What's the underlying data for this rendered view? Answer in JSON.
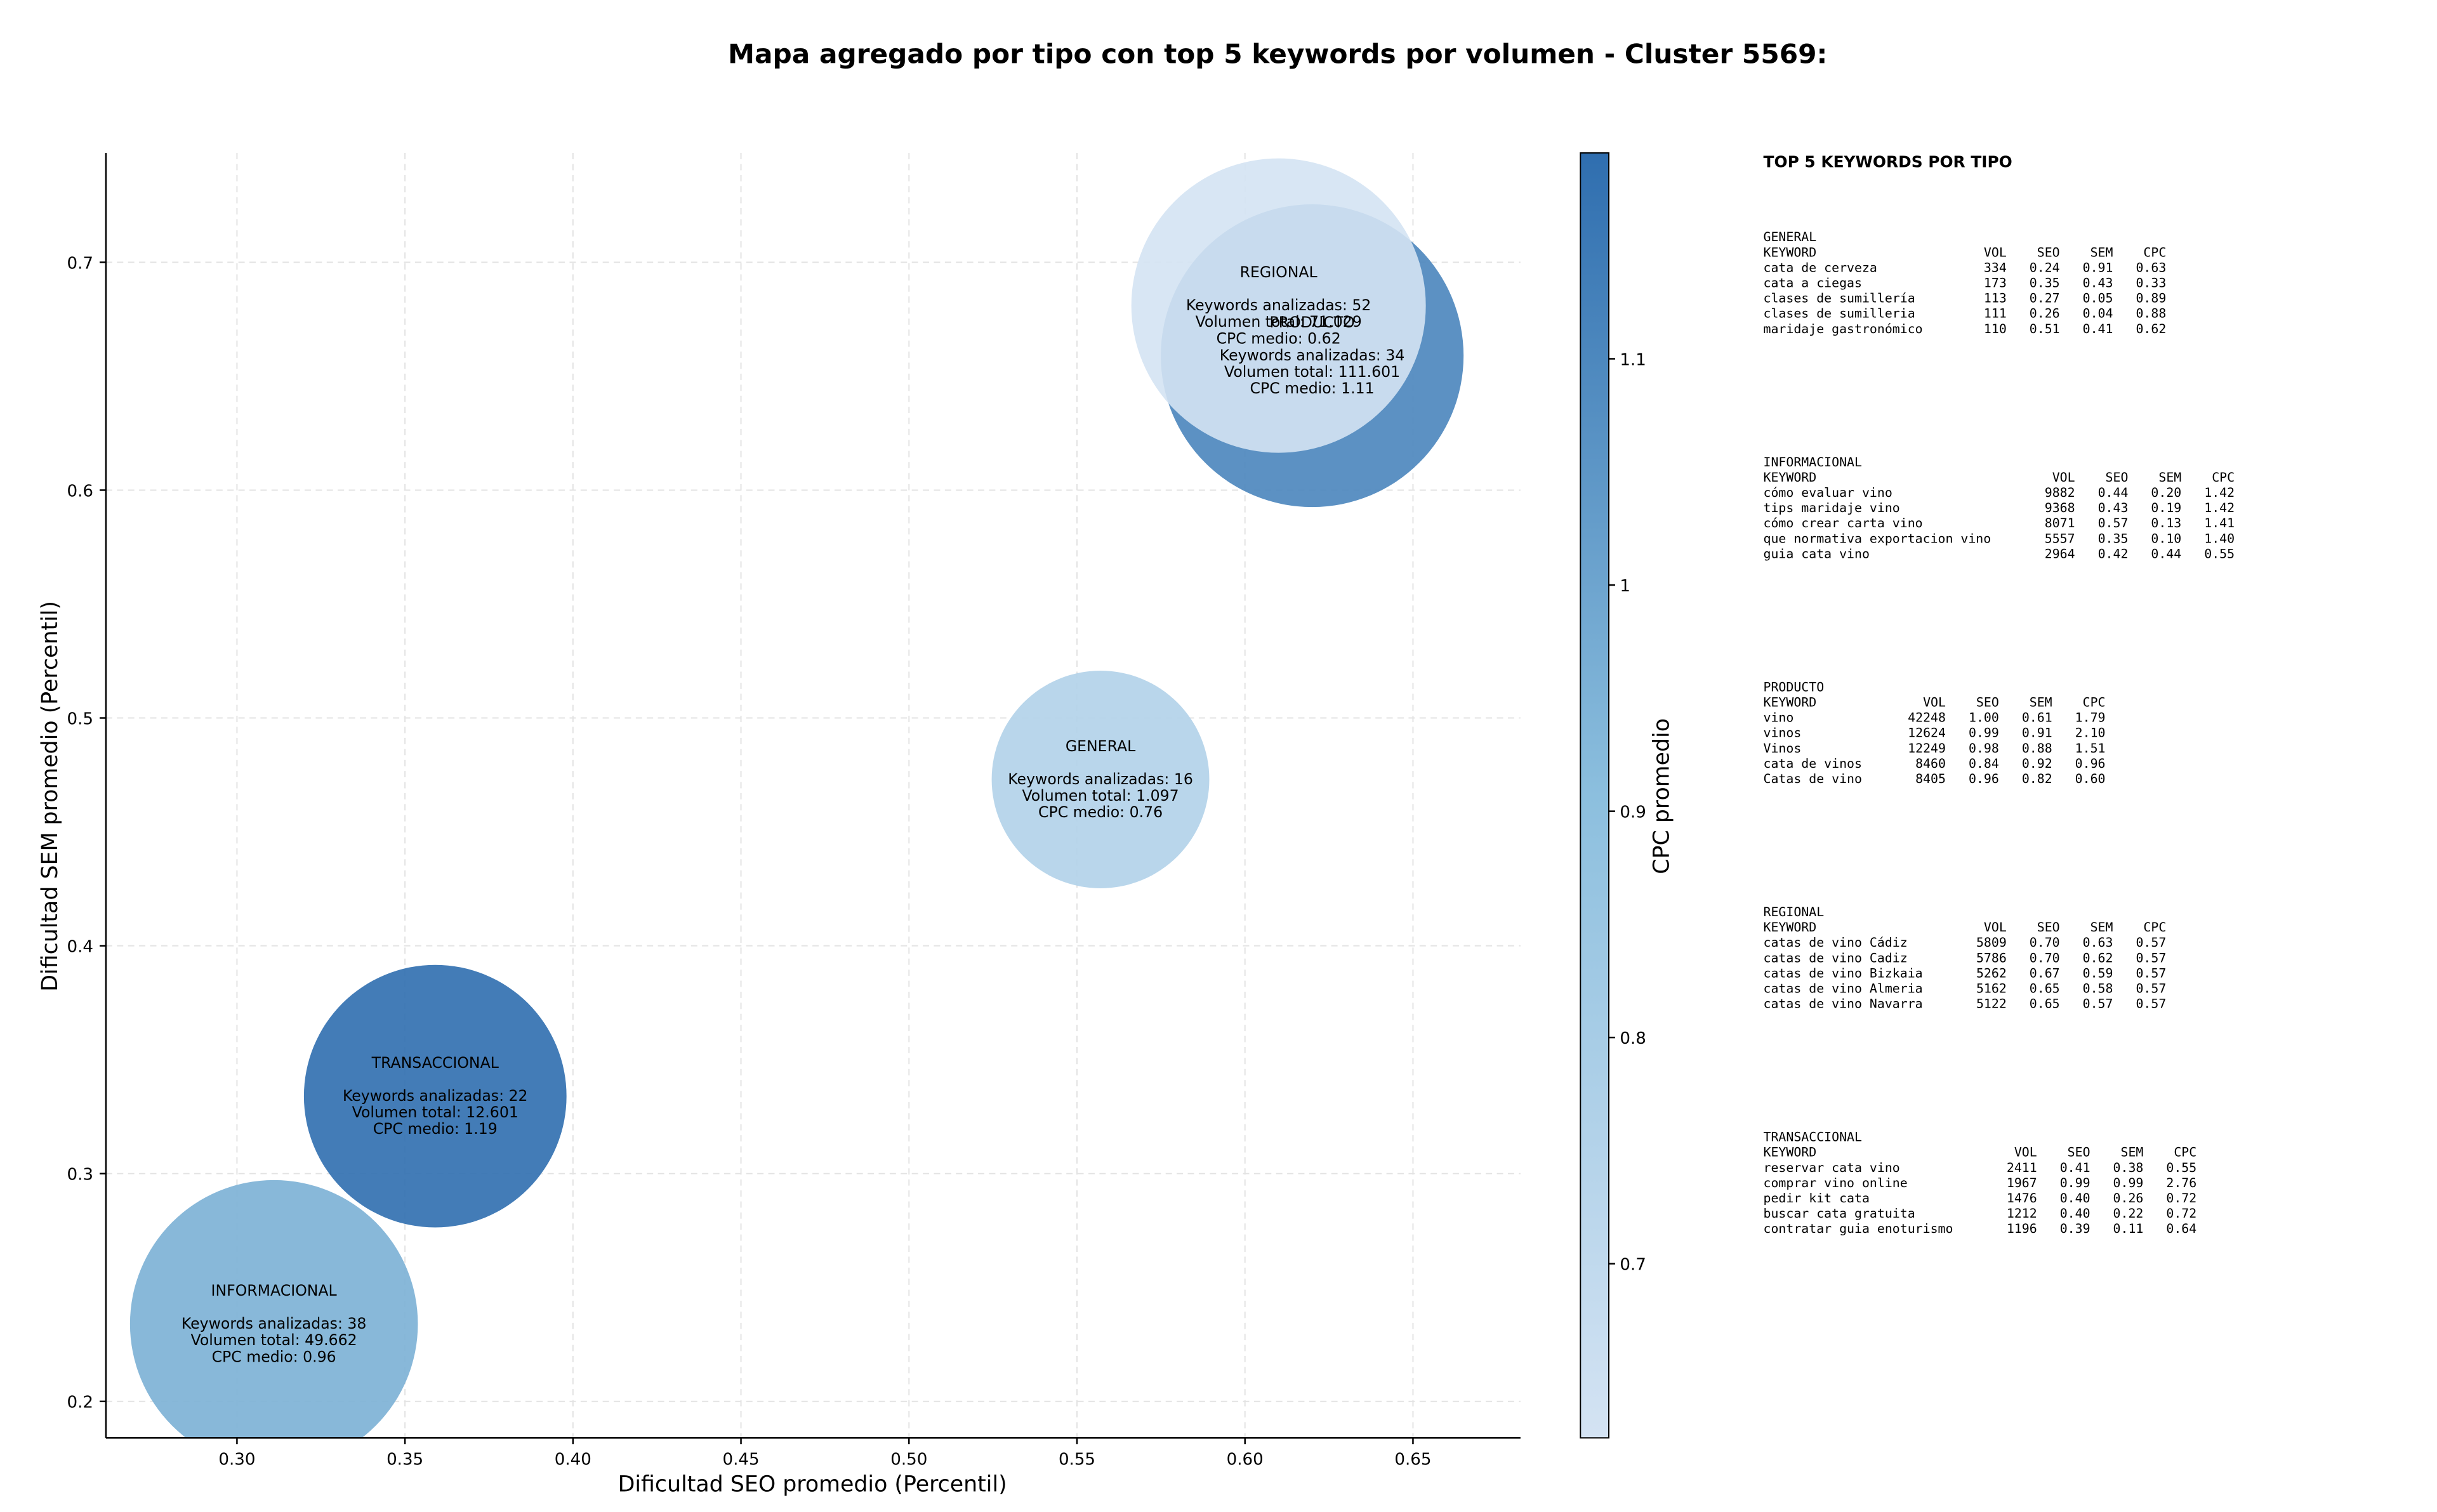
{
  "chart_data": {
    "type": "bubble",
    "title": "Mapa agregado por tipo con top 5 keywords por volumen - Cluster 5569:",
    "x_label": "Dificultad SEO promedio (Percentil)",
    "y_label": "Dificultad SEM promedio (Percentil)",
    "xlim": [
      0.261,
      0.682
    ],
    "ylim": [
      0.184,
      0.748
    ],
    "xticks": [
      {
        "value": 0.3,
        "label": "0.30"
      },
      {
        "value": 0.35,
        "label": "0.35"
      },
      {
        "value": 0.4,
        "label": "0.40"
      },
      {
        "value": 0.45,
        "label": "0.45"
      },
      {
        "value": 0.5,
        "label": "0.50"
      },
      {
        "value": 0.55,
        "label": "0.55"
      },
      {
        "value": 0.6,
        "label": "0.60"
      },
      {
        "value": 0.65,
        "label": "0.65"
      }
    ],
    "yticks": [
      0.2,
      0.3,
      0.4,
      0.5,
      0.6,
      0.7
    ],
    "grid": true,
    "colorbar": {
      "label": "CPC promedio",
      "lim": [
        0.623,
        1.191
      ],
      "ticks": [
        0.7,
        0.8,
        0.9,
        1.0,
        1.1
      ],
      "colors": [
        "#d4e3f3",
        "#8cbfde",
        "#2f6eaf"
      ]
    },
    "points": [
      {
        "name": "INFORMACIONAL",
        "x": 0.311,
        "y": 0.234,
        "volume": 49662,
        "cpc": 0.96,
        "lines": [
          "Keywords analizadas: 38",
          "Volumen total: 49.662",
          "CPC medio: 0.96"
        ]
      },
      {
        "name": "TRANSACCIONAL",
        "x": 0.359,
        "y": 0.334,
        "volume": 12601,
        "cpc": 1.19,
        "lines": [
          "Keywords analizadas: 22",
          "Volumen total: 12.601",
          "CPC medio: 1.19"
        ]
      },
      {
        "name": "GENERAL",
        "x": 0.557,
        "y": 0.473,
        "volume": 1097,
        "cpc": 0.76,
        "lines": [
          "Keywords analizadas: 16",
          "Volumen total: 1.097",
          "CPC medio: 0.76"
        ]
      },
      {
        "name": "PRODUCTO",
        "x": 0.62,
        "y": 0.659,
        "volume": 111601,
        "cpc": 1.11,
        "lines": [
          "Keywords analizadas: 34",
          "Volumen total: 111.601",
          "CPC medio: 1.11"
        ]
      },
      {
        "name": "REGIONAL",
        "x": 0.61,
        "y": 0.681,
        "volume": 71029,
        "cpc": 0.62,
        "lines": [
          "Keywords analizadas: 52",
          "Volumen total: 71.029",
          "CPC medio: 0.62"
        ]
      }
    ]
  },
  "panel": {
    "title": "TOP 5 KEYWORDS POR TIPO",
    "columns": [
      "KEYWORD",
      "VOL",
      "SEO",
      "SEM",
      "CPC"
    ],
    "groups": [
      {
        "name": "GENERAL",
        "rows": [
          [
            "cata de cerveza",
            "334",
            "0.24",
            "0.91",
            "0.63"
          ],
          [
            "cata a ciegas",
            "173",
            "0.35",
            "0.43",
            "0.33"
          ],
          [
            "clases de sumillería",
            "113",
            "0.27",
            "0.05",
            "0.89"
          ],
          [
            "clases de sumilleria",
            "111",
            "0.26",
            "0.04",
            "0.88"
          ],
          [
            "maridaje gastronómico",
            "110",
            "0.51",
            "0.41",
            "0.62"
          ]
        ]
      },
      {
        "name": "INFORMACIONAL",
        "rows": [
          [
            "cómo evaluar vino",
            "9882",
            "0.44",
            "0.20",
            "1.42"
          ],
          [
            "tips maridaje vino",
            "9368",
            "0.43",
            "0.19",
            "1.42"
          ],
          [
            "cómo crear carta vino",
            "8071",
            "0.57",
            "0.13",
            "1.41"
          ],
          [
            "que normativa exportacion vino",
            "5557",
            "0.35",
            "0.10",
            "1.40"
          ],
          [
            "guia cata vino",
            "2964",
            "0.42",
            "0.44",
            "0.55"
          ]
        ]
      },
      {
        "name": "PRODUCTO",
        "rows": [
          [
            "vino",
            "42248",
            "1.00",
            "0.61",
            "1.79"
          ],
          [
            "vinos",
            "12624",
            "0.99",
            "0.91",
            "2.10"
          ],
          [
            "Vinos",
            "12249",
            "0.98",
            "0.88",
            "1.51"
          ],
          [
            "cata de vinos",
            "8460",
            "0.84",
            "0.92",
            "0.96"
          ],
          [
            "Catas de vino",
            "8405",
            "0.96",
            "0.82",
            "0.60"
          ]
        ]
      },
      {
        "name": "REGIONAL",
        "rows": [
          [
            "catas de vino Cádiz",
            "5809",
            "0.70",
            "0.63",
            "0.57"
          ],
          [
            "catas de vino Cadiz",
            "5786",
            "0.70",
            "0.62",
            "0.57"
          ],
          [
            "catas de vino Bizkaia",
            "5262",
            "0.67",
            "0.59",
            "0.57"
          ],
          [
            "catas de vino Almeria",
            "5162",
            "0.65",
            "0.58",
            "0.57"
          ],
          [
            "catas de vino Navarra",
            "5122",
            "0.65",
            "0.57",
            "0.57"
          ]
        ]
      },
      {
        "name": "TRANSACCIONAL",
        "rows": [
          [
            "reservar cata vino",
            "2411",
            "0.41",
            "0.38",
            "0.55"
          ],
          [
            "comprar vino online",
            "1967",
            "0.99",
            "0.99",
            "2.76"
          ],
          [
            "pedir kit cata",
            "1476",
            "0.40",
            "0.26",
            "0.72"
          ],
          [
            "buscar cata gratuita",
            "1212",
            "0.40",
            "0.22",
            "0.72"
          ],
          [
            "contratar guia enoturismo",
            "1196",
            "0.39",
            "0.11",
            "0.64"
          ]
        ]
      }
    ]
  }
}
